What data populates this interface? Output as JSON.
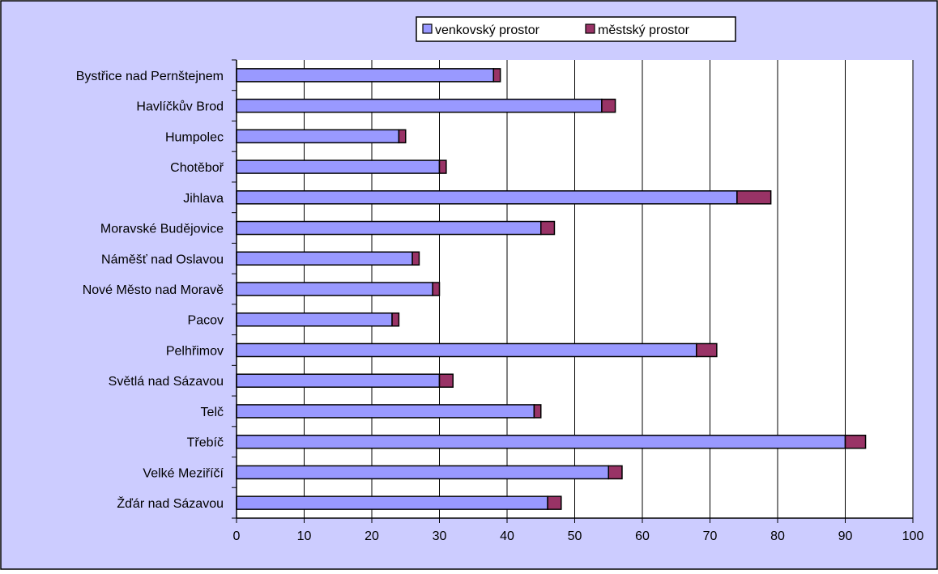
{
  "chart_data": {
    "type": "bar",
    "orientation": "horizontal",
    "stacked": true,
    "categories": [
      "Bystřice nad Pernštejnem",
      "Havlíčkův Brod",
      "Humpolec",
      "Chotěboř",
      "Jihlava",
      "Moravské Budějovice",
      "Náměšť nad Oslavou",
      "Nové Město nad Moravě",
      "Pacov",
      "Pelhřimov",
      "Světlá nad Sázavou",
      "Telč",
      "Třebíč",
      "Velké Meziříčí",
      "Žďár nad Sázavou"
    ],
    "series": [
      {
        "name": "venkovský prostor",
        "color": "#9999ff",
        "values": [
          38,
          54,
          24,
          30,
          74,
          45,
          26,
          29,
          23,
          68,
          30,
          44,
          90,
          55,
          46
        ]
      },
      {
        "name": "městský prostor",
        "color": "#993366",
        "values": [
          1,
          2,
          1,
          1,
          5,
          2,
          1,
          1,
          1,
          3,
          2,
          1,
          3,
          2,
          2
        ]
      }
    ],
    "xlim": [
      0,
      100
    ],
    "xticks": [
      "0",
      "10",
      "20",
      "30",
      "40",
      "50",
      "60",
      "70",
      "80",
      "90",
      "100"
    ],
    "grid": "vertical",
    "legend": "top-center",
    "title": "",
    "xlabel": "",
    "ylabel": ""
  },
  "colors": {
    "chart_background": "#ccccff",
    "plot_background": "#ffffff",
    "gridline": "#000000",
    "bar_outline": "#000000"
  }
}
